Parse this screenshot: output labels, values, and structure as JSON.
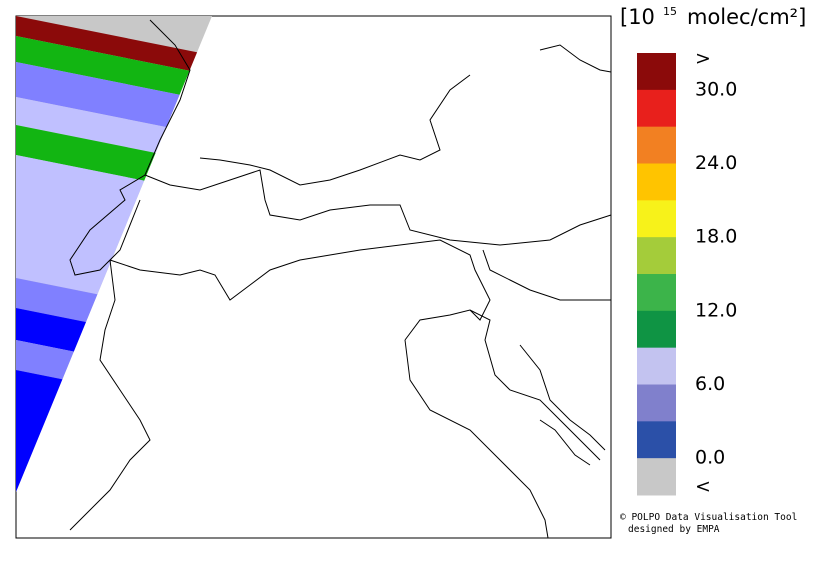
{
  "unit": {
    "base": "[10",
    "exponent": "15",
    "rest": "molec/cm²]"
  },
  "legend": {
    "colors": [
      "#8b0a0a",
      "#e8201c",
      "#f28022",
      "#ffc400",
      "#f7f21a",
      "#a4cc3a",
      "#3cb44a",
      "#0f9444",
      "#c3c3f0",
      "#8080cc",
      "#2b50a8",
      "#c8c8c8"
    ],
    "labels": [
      ">",
      "30.0",
      "24.0",
      "18.0",
      "12.0",
      "6.0",
      "0.0",
      "<"
    ]
  },
  "credits": [
    "© POLPO Data Visualisation Tool",
    "designed by EMPA"
  ]
}
